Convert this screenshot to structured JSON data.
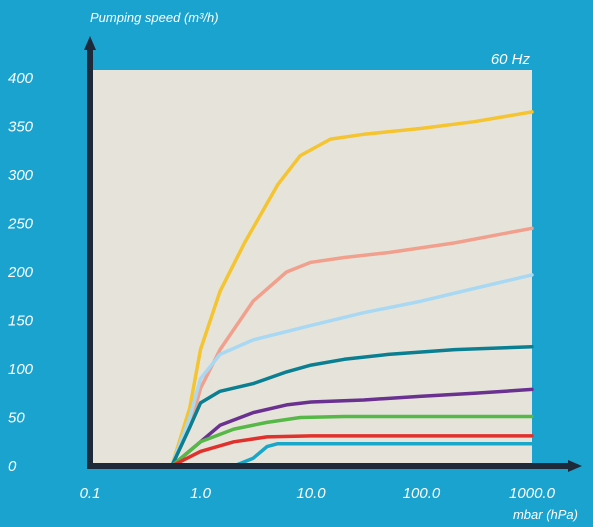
{
  "chart_data": {
    "type": "line",
    "title": "",
    "annotation": "60 Hz",
    "ylabel": "Pumping speed (m³/h)",
    "xlabel": "mbar (hPa)",
    "x_scale": "log",
    "xlim": [
      0.1,
      1000
    ],
    "ylim": [
      0,
      400
    ],
    "x_ticks": [
      {
        "value": 0.1,
        "label": "0.1"
      },
      {
        "value": 1,
        "label": "1.0"
      },
      {
        "value": 10,
        "label": "10.0"
      },
      {
        "value": 100,
        "label": "100.0"
      },
      {
        "value": 1000,
        "label": "1000.0"
      }
    ],
    "y_ticks": [
      {
        "value": 0,
        "label": "0"
      },
      {
        "value": 50,
        "label": "50"
      },
      {
        "value": 100,
        "label": "100"
      },
      {
        "value": 150,
        "label": "150"
      },
      {
        "value": 200,
        "label": "200"
      },
      {
        "value": 250,
        "label": "250"
      },
      {
        "value": 300,
        "label": "300"
      },
      {
        "value": 350,
        "label": "350"
      },
      {
        "value": 400,
        "label": "400"
      }
    ],
    "grid": false,
    "legend": "none",
    "colors": {
      "background": "#1aa3cf",
      "plot_area": "#e6e4da",
      "axis": "#1e2a3a",
      "text": "#ffffff"
    },
    "series": [
      {
        "color": "#f5c431",
        "points": [
          [
            0.55,
            0
          ],
          [
            0.8,
            60
          ],
          [
            1.0,
            120
          ],
          [
            1.5,
            180
          ],
          [
            2.5,
            230
          ],
          [
            5,
            290
          ],
          [
            8,
            320
          ],
          [
            15,
            337
          ],
          [
            30,
            342
          ],
          [
            100,
            348
          ],
          [
            300,
            355
          ],
          [
            1000,
            365
          ]
        ]
      },
      {
        "color": "#f1a08d",
        "points": [
          [
            0.55,
            0
          ],
          [
            0.8,
            40
          ],
          [
            1.0,
            80
          ],
          [
            1.5,
            120
          ],
          [
            3,
            170
          ],
          [
            6,
            200
          ],
          [
            10,
            210
          ],
          [
            20,
            215
          ],
          [
            50,
            220
          ],
          [
            200,
            230
          ],
          [
            1000,
            245
          ]
        ]
      },
      {
        "color": "#a9d8f3",
        "points": [
          [
            0.55,
            0
          ],
          [
            0.8,
            50
          ],
          [
            1.0,
            90
          ],
          [
            1.5,
            115
          ],
          [
            3,
            130
          ],
          [
            10,
            145
          ],
          [
            30,
            158
          ],
          [
            100,
            170
          ],
          [
            300,
            183
          ],
          [
            1000,
            197
          ]
        ]
      },
      {
        "color": "#0a7f92",
        "points": [
          [
            0.55,
            0
          ],
          [
            0.8,
            40
          ],
          [
            1.0,
            65
          ],
          [
            1.5,
            77
          ],
          [
            3,
            85
          ],
          [
            6,
            97
          ],
          [
            10,
            104
          ],
          [
            20,
            110
          ],
          [
            50,
            115
          ],
          [
            200,
            120
          ],
          [
            1000,
            123
          ]
        ]
      },
      {
        "color": "#6a3191",
        "points": [
          [
            0.55,
            0
          ],
          [
            1.0,
            25
          ],
          [
            1.5,
            42
          ],
          [
            3,
            55
          ],
          [
            6,
            63
          ],
          [
            10,
            66
          ],
          [
            30,
            68
          ],
          [
            100,
            72
          ],
          [
            300,
            75
          ],
          [
            1000,
            79
          ]
        ]
      },
      {
        "color": "#56b847",
        "points": [
          [
            0.55,
            0
          ],
          [
            1.0,
            25
          ],
          [
            2,
            38
          ],
          [
            4,
            45
          ],
          [
            8,
            50
          ],
          [
            20,
            51
          ],
          [
            100,
            51
          ],
          [
            1000,
            51
          ]
        ]
      },
      {
        "color": "#e0312c",
        "points": [
          [
            0.55,
            0
          ],
          [
            1.0,
            15
          ],
          [
            2,
            25
          ],
          [
            4,
            30
          ],
          [
            10,
            31
          ],
          [
            100,
            31
          ],
          [
            1000,
            31
          ]
        ]
      },
      {
        "color": "#19a7c9",
        "points": [
          [
            2.0,
            0
          ],
          [
            3,
            8
          ],
          [
            4,
            20
          ],
          [
            5,
            23
          ],
          [
            10,
            23
          ],
          [
            100,
            23
          ],
          [
            1000,
            23
          ]
        ]
      }
    ]
  }
}
